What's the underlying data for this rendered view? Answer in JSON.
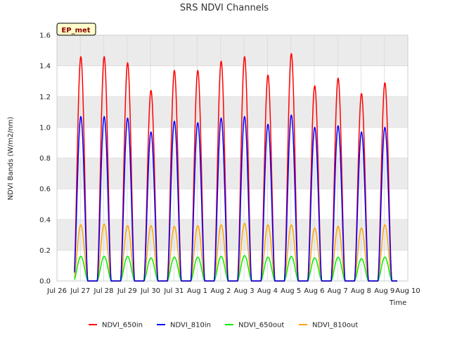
{
  "chart_data": {
    "type": "line",
    "title": "SRS NDVI Channels",
    "xlabel": "Time",
    "ylabel": "NDVI Bands (W/m2/nm)",
    "ylim": [
      0,
      1.6
    ],
    "xlim": [
      0,
      15
    ],
    "y_ticks": [
      "0.0",
      "0.2",
      "0.4",
      "0.6",
      "0.8",
      "1.0",
      "1.2",
      "1.4",
      "1.6"
    ],
    "x_ticks": [
      "Jul 26",
      "Jul 27",
      "Jul 28",
      "Jul 29",
      "Jul 30",
      "Jul 31",
      "Aug 1",
      "Aug 2",
      "Aug 3",
      "Aug 4",
      "Aug 5",
      "Aug 6",
      "Aug 7",
      "Aug 8",
      "Aug 9",
      "Aug 10"
    ],
    "badge": "EP_met",
    "grid": true,
    "legend_position": "bottom",
    "colors": {
      "NDVI_650in": "#ff0000",
      "NDVI_810in": "#0000ff",
      "NDVI_650out": "#00ee00",
      "NDVI_810out": "#ffa500",
      "band": "#ebebeb",
      "grid": "#d9d9d9",
      "badge_bg": "#ffffcc"
    },
    "days": [
      "Jul 26",
      "Jul 27",
      "Jul 28",
      "Jul 29",
      "Jul 30",
      "Jul 31",
      "Aug 1",
      "Aug 2",
      "Aug 3",
      "Aug 4",
      "Aug 5",
      "Aug 6",
      "Aug 7",
      "Aug 8",
      "Aug 9"
    ],
    "series": [
      {
        "name": "NDVI_650in",
        "daily_peak": [
          1.46,
          1.46,
          1.42,
          1.24,
          1.37,
          1.37,
          1.43,
          1.46,
          1.34,
          1.48,
          1.27,
          1.32,
          1.22,
          1.29
        ]
      },
      {
        "name": "NDVI_810in",
        "daily_peak": [
          1.07,
          1.07,
          1.06,
          0.97,
          1.04,
          1.03,
          1.06,
          1.07,
          1.02,
          1.08,
          1.0,
          1.01,
          0.97,
          1.0
        ]
      },
      {
        "name": "NDVI_650out",
        "daily_peak": [
          0.16,
          0.16,
          0.16,
          0.15,
          0.155,
          0.155,
          0.16,
          0.165,
          0.155,
          0.16,
          0.15,
          0.155,
          0.145,
          0.155
        ]
      },
      {
        "name": "NDVI_810out",
        "daily_peak": [
          0.365,
          0.37,
          0.36,
          0.36,
          0.355,
          0.36,
          0.365,
          0.375,
          0.365,
          0.365,
          0.345,
          0.355,
          0.345,
          0.365
        ]
      }
    ]
  }
}
